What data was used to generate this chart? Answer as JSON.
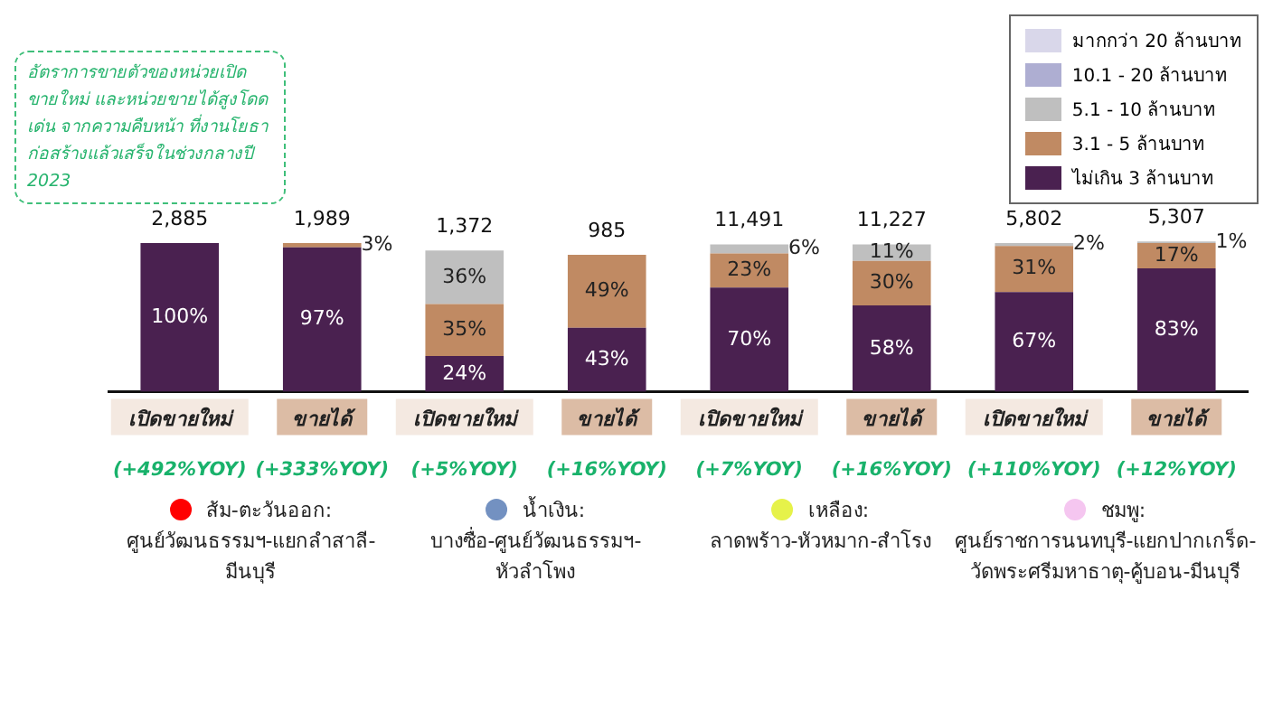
{
  "chart_data": {
    "type": "bar",
    "stacked": true,
    "tick_labels": "x",
    "legend": "top right",
    "categories": [
      "เปิดขายใหม่",
      "ขายได้",
      "เปิดขายใหม่",
      "ขายได้",
      "เปิดขายใหม่",
      "ขายได้",
      "เปิดขายใหม่",
      "ขายได้"
    ],
    "series": [
      {
        "name": "ไม่เกิน 3 ล้านบาท",
        "color": "#4a2150",
        "values": [
          100,
          97,
          24,
          43,
          70,
          58,
          67,
          83
        ],
        "value_labels": [
          "100%",
          "97%",
          "24%",
          "43%",
          "70%",
          "58%",
          "67%",
          "83%"
        ]
      },
      {
        "name": "3.1 - 5 ล้านบาท",
        "color": "#c08a63",
        "values": [
          null,
          3,
          35,
          49,
          23,
          30,
          31,
          17
        ],
        "value_labels": [
          null,
          "3%",
          "35%",
          "49%",
          "23%",
          "30%",
          "31%",
          "17%"
        ]
      },
      {
        "name": "5.1 - 10 ล้านบาท",
        "color": "#bfbfbf",
        "values": [
          null,
          null,
          36,
          null,
          6,
          11,
          2,
          1
        ],
        "value_labels": [
          null,
          null,
          "36%",
          null,
          "6%",
          "11%",
          "2%",
          "1%"
        ]
      },
      {
        "name": "10.1 - 20 ล้านบาท",
        "color": "#aeaed2",
        "values": [
          null,
          null,
          null,
          null,
          null,
          null,
          null,
          null
        ]
      },
      {
        "name": "มากกว่า 20 ล้านบาท",
        "color": "#d9d7ea",
        "values": [
          null,
          null,
          null,
          null,
          null,
          null,
          null,
          null
        ]
      }
    ],
    "annotations": [
      "2,885",
      "1,989",
      "1,372",
      "985",
      "11,491",
      "11,227",
      "5,802",
      "5,307",
      "(+492%YOY)",
      "(+333%YOY)",
      "(+5%YOY)",
      "(+16%YOY)",
      "(+7%YOY)",
      "(+16%YOY)",
      "(+110%YOY)",
      "(+12%YOY)",
      "ส้ม-ตะวันออก:\nศูนย์วัฒนธรรมฯ-แยกลำสาลี-\nมีนบุรี",
      "น้ำเงิน:\nบางซื่อ-ศูนย์วัฒนธรรมฯ-\nหัวลำโพง",
      "เหลือง:\nลาดพร้าว-หัวหมาก-สำโรง",
      "ชมพู:\nศูนย์ราชการนนทบุรี-แยกปากเกร็ด-\nวัดพระศรีมหาธาตุ-คู้บอน-มีนบุรี",
      "อัตราการขายตัวของหน่วยเปิดขายใหม่ และหน่วยขายได้สูงโดดเด่น จากความคืบหน้า ที่งานโยธาก่อสร้างแล้วเสร็จในช่วงกลางปี 2023"
    ]
  }
}
